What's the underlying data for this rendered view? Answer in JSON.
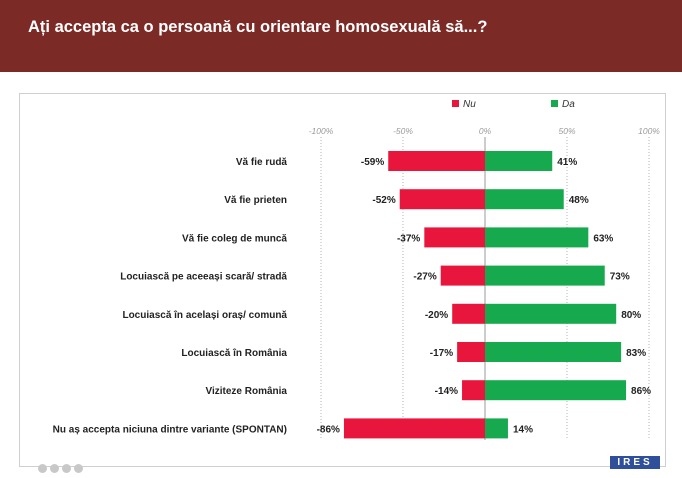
{
  "header": {
    "title": "Ați accepta ca o persoană cu orientare homosexuală să...?"
  },
  "footer": {
    "logo_text": "IRES"
  },
  "colors": {
    "nu": "#e8163c",
    "da": "#16a94e",
    "header_bg": "#7b2a26"
  },
  "chart_data": {
    "type": "bar",
    "orientation": "horizontal-diverging",
    "categories": [
      "Vă fie rudă",
      "Vă fie prieten",
      "Vă fie coleg de muncă",
      "Locuiască pe aceeași scară/ stradă",
      "Locuiască în același oraș/ comună",
      "Locuiască în România",
      "Viziteze România",
      "Nu aș accepta niciuna dintre variante (SPONTAN)"
    ],
    "series": [
      {
        "name": "Nu",
        "values": [
          -59,
          -52,
          -37,
          -27,
          -20,
          -17,
          -14,
          -86
        ],
        "color": "#e8163c"
      },
      {
        "name": "Da",
        "values": [
          41,
          48,
          63,
          73,
          80,
          83,
          86,
          14
        ],
        "color": "#16a94e"
      }
    ],
    "x_ticks": [
      -100,
      -50,
      0,
      50,
      100
    ],
    "x_tick_labels": [
      "-100%",
      "-50%",
      "0%",
      "50%",
      "100%"
    ],
    "xlim": [
      -100,
      100
    ],
    "value_suffix": "%",
    "legend_position": "top-center",
    "grid": true
  }
}
